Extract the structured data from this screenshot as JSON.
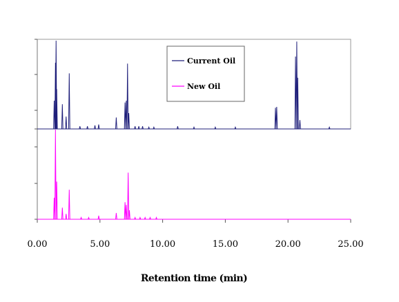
{
  "chart_data": {
    "type": "line",
    "title": "",
    "xlabel": "Retention time (min)",
    "ylabel": "",
    "xlim": [
      0,
      25
    ],
    "x_ticks": [
      "0.00",
      "5.00",
      "10.00",
      "15.00",
      "20.00",
      "25.00"
    ],
    "x_tick_values": [
      0,
      5,
      10,
      15,
      20,
      25
    ],
    "ylim": [
      0,
      1
    ],
    "grid": false,
    "legend_position": "top-center",
    "series": [
      {
        "name": "Current Oil",
        "color": "#1f1f7a",
        "panel": "top",
        "peaks": [
          {
            "x": 1.35,
            "y": 0.32
          },
          {
            "x": 1.45,
            "y": 0.75
          },
          {
            "x": 1.5,
            "y": 1.0
          },
          {
            "x": 1.55,
            "y": 0.45
          },
          {
            "x": 2.0,
            "y": 0.28
          },
          {
            "x": 2.3,
            "y": 0.14
          },
          {
            "x": 2.55,
            "y": 0.63
          },
          {
            "x": 3.4,
            "y": 0.03
          },
          {
            "x": 4.0,
            "y": 0.03
          },
          {
            "x": 4.6,
            "y": 0.04
          },
          {
            "x": 4.9,
            "y": 0.05
          },
          {
            "x": 6.3,
            "y": 0.13
          },
          {
            "x": 7.0,
            "y": 0.3
          },
          {
            "x": 7.1,
            "y": 0.32
          },
          {
            "x": 7.2,
            "y": 0.74
          },
          {
            "x": 7.3,
            "y": 0.18
          },
          {
            "x": 7.8,
            "y": 0.03
          },
          {
            "x": 8.1,
            "y": 0.03
          },
          {
            "x": 8.4,
            "y": 0.03
          },
          {
            "x": 8.9,
            "y": 0.02
          },
          {
            "x": 9.3,
            "y": 0.02
          },
          {
            "x": 11.2,
            "y": 0.03
          },
          {
            "x": 12.5,
            "y": 0.02
          },
          {
            "x": 14.2,
            "y": 0.02
          },
          {
            "x": 15.8,
            "y": 0.02
          },
          {
            "x": 19.0,
            "y": 0.24
          },
          {
            "x": 19.1,
            "y": 0.25
          },
          {
            "x": 20.6,
            "y": 0.82
          },
          {
            "x": 20.7,
            "y": 0.99
          },
          {
            "x": 20.78,
            "y": 0.58
          },
          {
            "x": 20.95,
            "y": 0.1
          },
          {
            "x": 23.3,
            "y": 0.02
          }
        ]
      },
      {
        "name": "New Oil",
        "color": "#ff00ff",
        "panel": "bottom",
        "peaks": [
          {
            "x": 1.35,
            "y": 0.24
          },
          {
            "x": 1.45,
            "y": 1.0
          },
          {
            "x": 1.55,
            "y": 0.42
          },
          {
            "x": 2.0,
            "y": 0.13
          },
          {
            "x": 2.3,
            "y": 0.06
          },
          {
            "x": 2.55,
            "y": 0.33
          },
          {
            "x": 3.5,
            "y": 0.02
          },
          {
            "x": 4.1,
            "y": 0.02
          },
          {
            "x": 4.9,
            "y": 0.04
          },
          {
            "x": 6.3,
            "y": 0.07
          },
          {
            "x": 7.0,
            "y": 0.19
          },
          {
            "x": 7.1,
            "y": 0.16
          },
          {
            "x": 7.25,
            "y": 0.52
          },
          {
            "x": 7.35,
            "y": 0.1
          },
          {
            "x": 7.8,
            "y": 0.02
          },
          {
            "x": 8.2,
            "y": 0.02
          },
          {
            "x": 8.6,
            "y": 0.02
          },
          {
            "x": 9.0,
            "y": 0.02
          },
          {
            "x": 9.5,
            "y": 0.02
          }
        ]
      }
    ]
  }
}
